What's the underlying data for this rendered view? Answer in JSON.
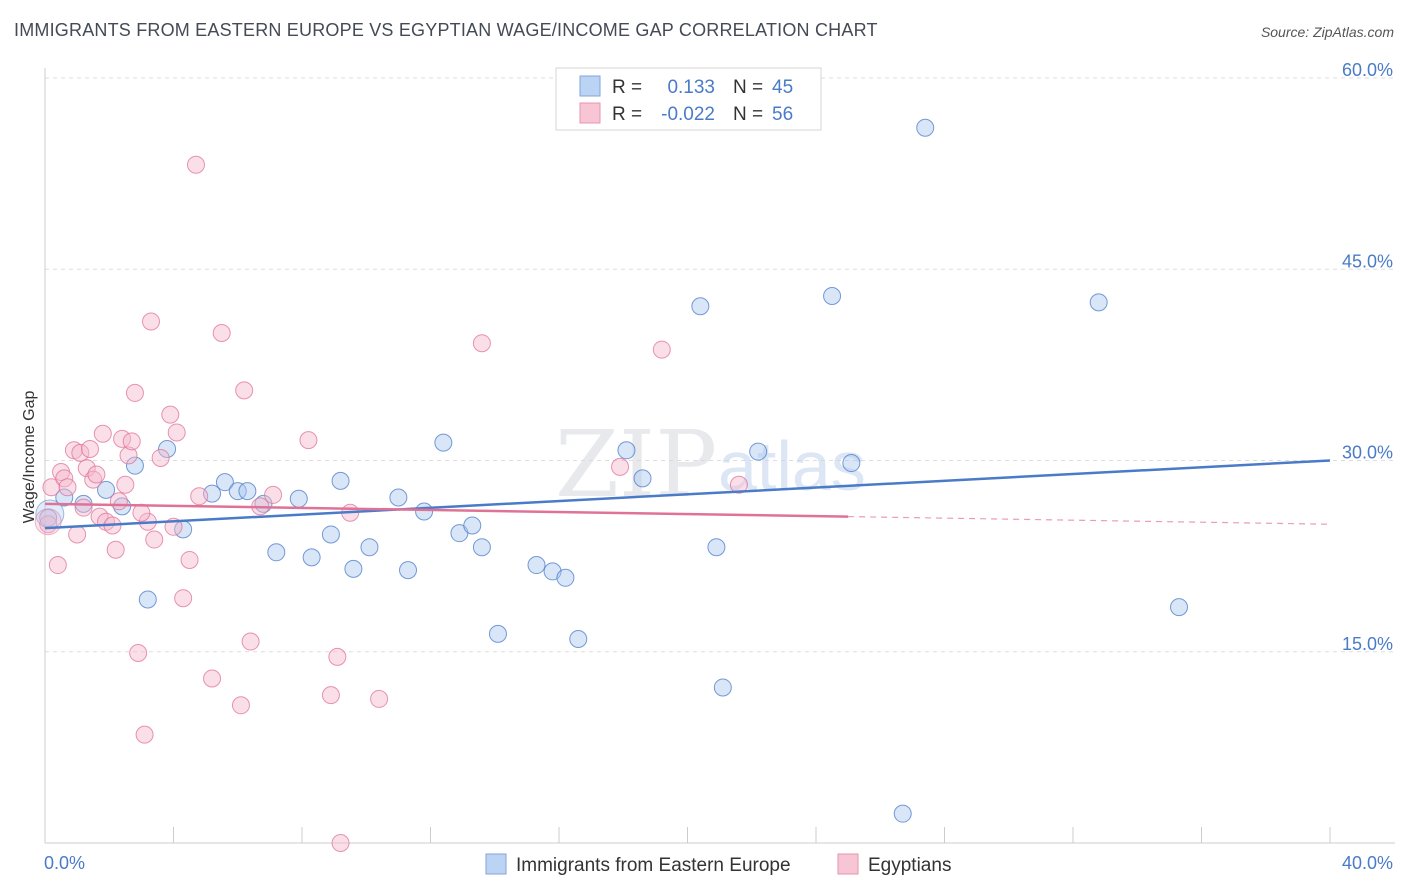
{
  "chart_data": {
    "type": "scatter",
    "title": "IMMIGRANTS FROM EASTERN EUROPE VS EGYPTIAN WAGE/INCOME GAP CORRELATION CHART",
    "source": "Source: ZipAtlas.com",
    "xlabel": "",
    "ylabel": "Wage/Income Gap",
    "xlim": [
      0,
      40
    ],
    "ylim": [
      0,
      60
    ],
    "x_tick_labels": [
      "0.0%",
      "40.0%"
    ],
    "y_ticks": [
      15,
      30,
      45,
      60
    ],
    "y_tick_labels": [
      "15.0%",
      "30.0%",
      "45.0%",
      "60.0%"
    ],
    "watermark": {
      "zip": "ZIP",
      "atlas": "atlas"
    },
    "stats_legend": {
      "r_label": "R =",
      "n_label": "N =",
      "rows": [
        {
          "r_value": "0.133",
          "n_value": "45"
        },
        {
          "r_value": "-0.022",
          "n_value": "56"
        }
      ]
    },
    "series": [
      {
        "name": "Immigrants from Eastern Europe",
        "color": "#4a7bc8",
        "fill": "#a9c8f0",
        "trend": {
          "x": [
            0,
            40
          ],
          "y": [
            24.7,
            30.0
          ],
          "dash_from": null
        },
        "points": [
          [
            0.1,
            25.5
          ],
          [
            0.6,
            27.1
          ],
          [
            1.2,
            26.6
          ],
          [
            1.9,
            27.7
          ],
          [
            2.4,
            26.4
          ],
          [
            2.8,
            29.6
          ],
          [
            3.2,
            19.1
          ],
          [
            3.8,
            30.9
          ],
          [
            4.3,
            24.6
          ],
          [
            5.2,
            27.4
          ],
          [
            5.6,
            28.3
          ],
          [
            6.0,
            27.6
          ],
          [
            6.3,
            27.6
          ],
          [
            6.8,
            26.6
          ],
          [
            7.2,
            22.8
          ],
          [
            7.9,
            27.0
          ],
          [
            8.3,
            22.4
          ],
          [
            8.9,
            24.2
          ],
          [
            9.2,
            28.4
          ],
          [
            9.6,
            21.5
          ],
          [
            10.1,
            23.2
          ],
          [
            11.0,
            27.1
          ],
          [
            11.3,
            21.4
          ],
          [
            11.8,
            26.0
          ],
          [
            12.4,
            31.4
          ],
          [
            12.9,
            24.3
          ],
          [
            13.3,
            24.9
          ],
          [
            13.6,
            23.2
          ],
          [
            14.1,
            16.4
          ],
          [
            15.3,
            21.8
          ],
          [
            15.8,
            21.3
          ],
          [
            16.2,
            20.8
          ],
          [
            16.6,
            16.0
          ],
          [
            18.1,
            30.8
          ],
          [
            18.6,
            28.6
          ],
          [
            20.4,
            42.1
          ],
          [
            20.9,
            23.2
          ],
          [
            21.1,
            12.2
          ],
          [
            22.2,
            30.7
          ],
          [
            24.5,
            42.9
          ],
          [
            25.1,
            29.8
          ],
          [
            26.7,
            2.3
          ],
          [
            27.4,
            56.1
          ],
          [
            32.8,
            42.4
          ],
          [
            35.3,
            18.5
          ]
        ]
      },
      {
        "name": "Egyptians",
        "color": "#e07298",
        "fill": "#f5b8cb",
        "trend": {
          "x": [
            0,
            40
          ],
          "y": [
            26.6,
            25.0
          ],
          "dash_from": 25
        },
        "points": [
          [
            0.1,
            25.0
          ],
          [
            0.2,
            27.9
          ],
          [
            0.4,
            21.8
          ],
          [
            0.5,
            29.1
          ],
          [
            0.6,
            28.6
          ],
          [
            0.7,
            27.9
          ],
          [
            0.9,
            30.8
          ],
          [
            1.0,
            24.2
          ],
          [
            1.1,
            30.6
          ],
          [
            1.3,
            29.4
          ],
          [
            1.4,
            30.9
          ],
          [
            1.5,
            28.5
          ],
          [
            1.6,
            28.9
          ],
          [
            1.7,
            25.6
          ],
          [
            1.8,
            32.1
          ],
          [
            1.9,
            25.2
          ],
          [
            2.1,
            24.9
          ],
          [
            2.2,
            23.0
          ],
          [
            2.3,
            26.8
          ],
          [
            2.4,
            31.7
          ],
          [
            2.5,
            28.1
          ],
          [
            2.6,
            30.4
          ],
          [
            2.7,
            31.5
          ],
          [
            2.8,
            35.3
          ],
          [
            2.9,
            14.9
          ],
          [
            3.1,
            8.5
          ],
          [
            3.2,
            25.2
          ],
          [
            3.3,
            40.9
          ],
          [
            3.4,
            23.8
          ],
          [
            3.6,
            30.2
          ],
          [
            3.9,
            33.6
          ],
          [
            4.0,
            24.8
          ],
          [
            4.1,
            32.2
          ],
          [
            4.3,
            19.2
          ],
          [
            4.5,
            22.2
          ],
          [
            4.7,
            53.2
          ],
          [
            4.8,
            27.2
          ],
          [
            5.2,
            12.9
          ],
          [
            5.5,
            40.0
          ],
          [
            6.1,
            10.8
          ],
          [
            6.2,
            35.5
          ],
          [
            6.4,
            15.8
          ],
          [
            6.7,
            26.4
          ],
          [
            7.1,
            27.3
          ],
          [
            8.2,
            31.6
          ],
          [
            8.9,
            11.6
          ],
          [
            9.1,
            14.6
          ],
          [
            9.2,
            0.0
          ],
          [
            9.5,
            25.9
          ],
          [
            10.4,
            11.3
          ],
          [
            13.6,
            39.2
          ],
          [
            17.9,
            29.5
          ],
          [
            19.2,
            38.7
          ],
          [
            21.6,
            28.1
          ],
          [
            3.0,
            25.9
          ],
          [
            1.2,
            26.3
          ]
        ]
      }
    ]
  }
}
